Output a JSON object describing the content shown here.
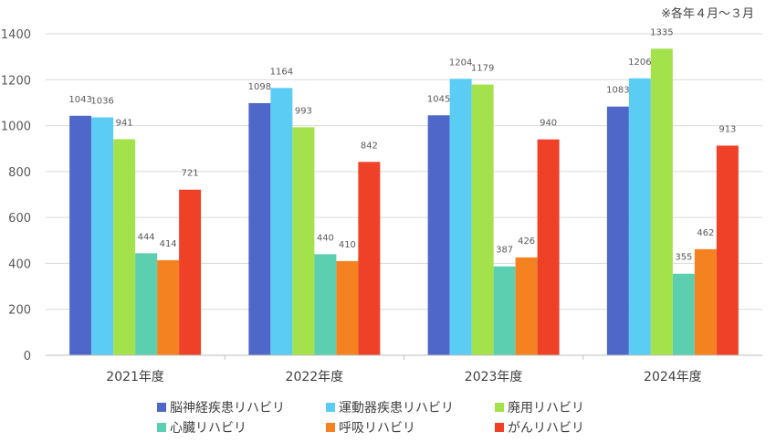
{
  "chart_data": {
    "type": "bar",
    "note": "※各年４月～３月",
    "categories": [
      "2021年度",
      "2022年度",
      "2023年度",
      "2024年度"
    ],
    "ylim": [
      0,
      1400
    ],
    "yticks": [
      0,
      200,
      400,
      600,
      800,
      1000,
      1200,
      1400
    ],
    "grid": true,
    "legend_position": "bottom",
    "series": [
      {
        "name": "脳神経疾患リハビリ",
        "color": "#4F67C9",
        "values": [
          1043,
          1098,
          1045,
          1083
        ]
      },
      {
        "name": "運動器疾患リハビリ",
        "color": "#5BCDF5",
        "values": [
          1036,
          1164,
          1204,
          1206
        ]
      },
      {
        "name": "廃用リハビリ",
        "color": "#A4E24C",
        "values": [
          941,
          993,
          1179,
          1335
        ]
      },
      {
        "name": "心臓リハビリ",
        "color": "#5BCFB0",
        "values": [
          444,
          440,
          387,
          355
        ]
      },
      {
        "name": "呼吸リハビリ",
        "color": "#F58220",
        "values": [
          414,
          410,
          426,
          462
        ]
      },
      {
        "name": "がんリハビリ",
        "color": "#EE4127",
        "values": [
          721,
          842,
          940,
          913
        ]
      }
    ]
  }
}
